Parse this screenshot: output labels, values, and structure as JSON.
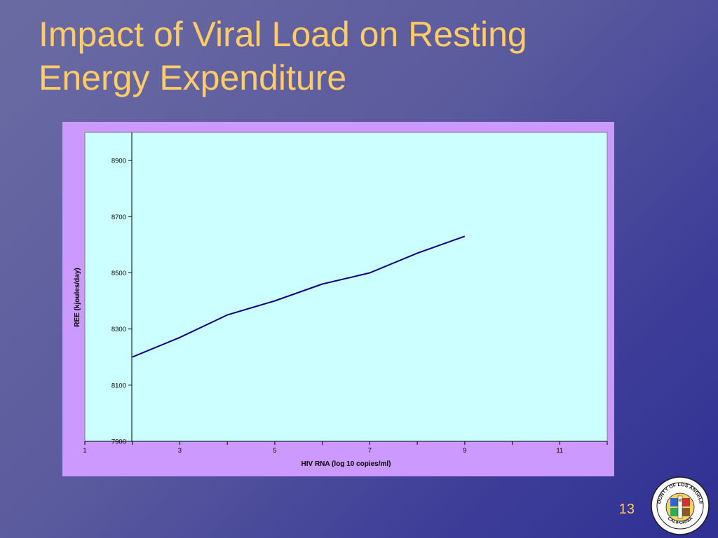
{
  "slide": {
    "title_line1": "Impact of Viral Load on Resting",
    "title_line2": "Energy Expenditure",
    "page_number": "13"
  },
  "seal": {
    "name": "county-seal-icon",
    "text_top": "COUNTY OF LOS ANGELES",
    "text_bottom": "CALIFORNIA"
  },
  "colors": {
    "background": "#5a5a9e",
    "title": "#ffcc66",
    "chart_frame": "#cc99ff",
    "plot_area": "#ccffff",
    "line": "#000080"
  },
  "chart_data": {
    "type": "line",
    "title": "",
    "xlabel": "HIV RNA (log 10 copies/ml)",
    "ylabel": "REE (kjoules/day)",
    "xlim": [
      1,
      12
    ],
    "ylim": [
      7900,
      9000
    ],
    "x_ticks": [
      1,
      3,
      5,
      7,
      9,
      11
    ],
    "y_ticks": [
      7900,
      8100,
      8300,
      8500,
      8700,
      8900
    ],
    "grid": false,
    "legend": "none",
    "series": [
      {
        "name": "",
        "x": [
          2,
          3,
          4,
          5,
          6,
          7,
          8,
          9
        ],
        "y": [
          8200,
          8270,
          8350,
          8400,
          8460,
          8500,
          8570,
          8630
        ]
      }
    ]
  }
}
